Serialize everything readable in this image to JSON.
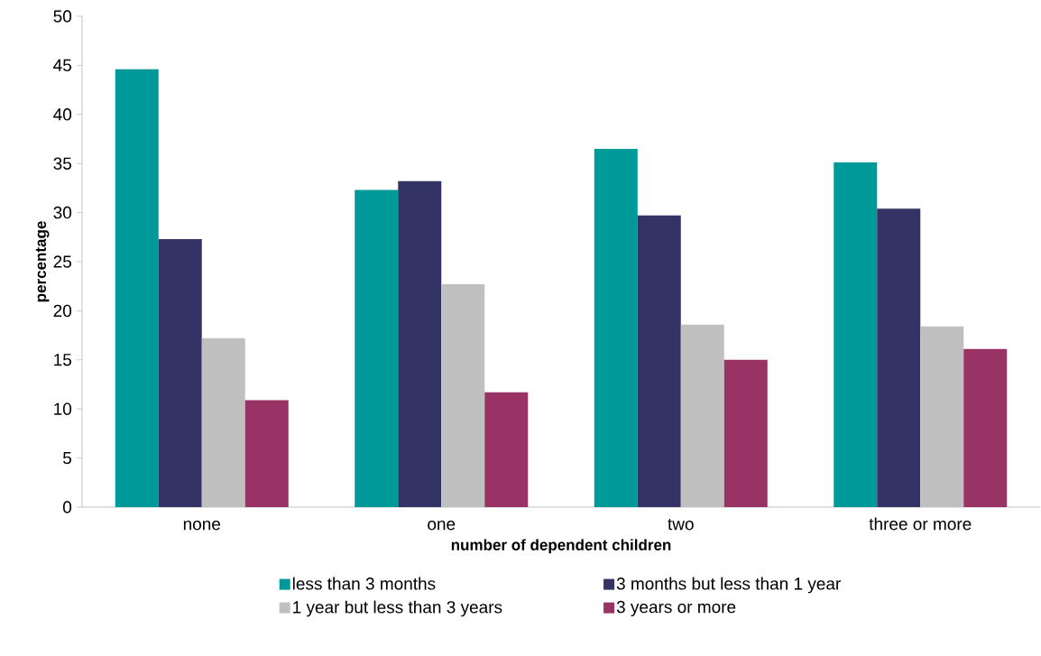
{
  "chart_data": {
    "type": "bar",
    "xlabel": "number of dependent children",
    "ylabel": "percentage",
    "categories": [
      "none",
      "one",
      "two",
      "three or more"
    ],
    "series": [
      {
        "name": "less than 3 months",
        "color": "#009999",
        "values": [
          44.6,
          32.3,
          36.5,
          35.1
        ]
      },
      {
        "name": "3 months but less than 1 year",
        "color": "#333366",
        "values": [
          27.3,
          33.2,
          29.7,
          30.4
        ]
      },
      {
        "name": "1 year but less than 3 years",
        "color": "#c0c0c0",
        "values": [
          17.2,
          22.7,
          18.6,
          18.4
        ]
      },
      {
        "name": "3 years or more",
        "color": "#993366",
        "values": [
          10.9,
          11.7,
          15.0,
          16.1
        ]
      }
    ],
    "ylim": [
      0,
      50
    ],
    "yticks": [
      0,
      5,
      10,
      15,
      20,
      25,
      30,
      35,
      40,
      45,
      50
    ],
    "legend": "bottom"
  }
}
